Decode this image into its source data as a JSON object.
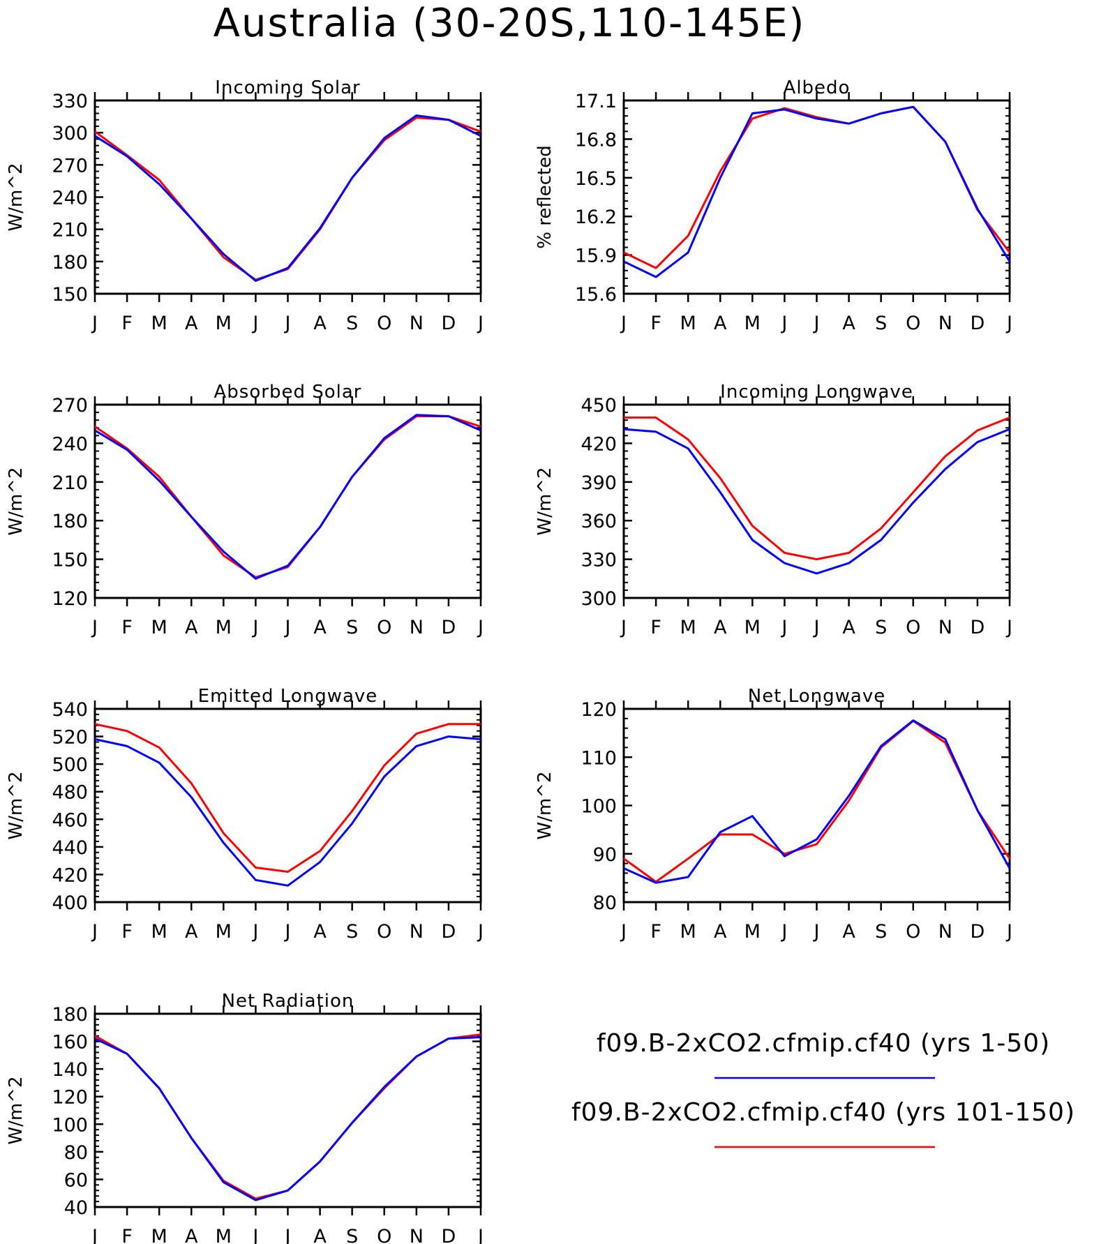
{
  "title": "Australia (30-20S,110-145E)",
  "colors": {
    "series_1": "#0000ff",
    "series_2": "#ff0000",
    "axis": "#000000"
  },
  "legend": {
    "items": [
      {
        "label": "f09.B-2xCO2.cfmip.cf40 (yrs 1-50)",
        "color": "#0000ff"
      },
      {
        "label": "f09.B-2xCO2.cfmip.cf40 (yrs 101-150)",
        "color": "#ff0000"
      }
    ]
  },
  "chart_data": [
    {
      "type": "line",
      "title": "Incoming Solar",
      "ylabel": "W/m^2",
      "xlabel": "",
      "categories": [
        "J",
        "F",
        "M",
        "A",
        "M",
        "J",
        "J",
        "A",
        "S",
        "O",
        "N",
        "D",
        "J"
      ],
      "ylim": [
        150,
        330
      ],
      "yticks": [
        150,
        180,
        210,
        240,
        270,
        300,
        330
      ],
      "series": [
        {
          "color": "#ff0000",
          "values": [
            301,
            279,
            256,
            220,
            184,
            163,
            173,
            210,
            258,
            293,
            314,
            312,
            301
          ]
        },
        {
          "color": "#0000ff",
          "values": [
            297,
            278,
            252,
            220,
            187,
            162,
            174,
            211,
            258,
            295,
            316,
            312,
            297
          ]
        }
      ]
    },
    {
      "type": "line",
      "title": "Albedo",
      "ylabel": "% reflected",
      "xlabel": "",
      "categories": [
        "J",
        "F",
        "M",
        "A",
        "M",
        "J",
        "J",
        "A",
        "S",
        "O",
        "N",
        "D",
        "J"
      ],
      "ylim": [
        15.6,
        17.1
      ],
      "yticks": [
        15.6,
        15.9,
        16.2,
        16.5,
        16.8,
        17.1
      ],
      "series": [
        {
          "color": "#ff0000",
          "values": [
            15.92,
            15.8,
            16.05,
            16.55,
            16.96,
            17.04,
            16.97,
            16.92,
            17.0,
            17.05,
            16.78,
            16.25,
            15.92
          ]
        },
        {
          "color": "#0000ff",
          "values": [
            15.85,
            15.73,
            15.92,
            16.5,
            17.0,
            17.03,
            16.96,
            16.92,
            17.0,
            17.05,
            16.78,
            16.26,
            15.85
          ]
        }
      ]
    },
    {
      "type": "line",
      "title": "Absorbed Solar",
      "ylabel": "W/m^2",
      "xlabel": "",
      "categories": [
        "J",
        "F",
        "M",
        "A",
        "M",
        "J",
        "J",
        "A",
        "S",
        "O",
        "N",
        "D",
        "J"
      ],
      "ylim": [
        120,
        270
      ],
      "yticks": [
        120,
        150,
        180,
        210,
        240,
        270
      ],
      "series": [
        {
          "color": "#ff0000",
          "values": [
            253,
            236,
            214,
            183,
            153,
            136,
            144,
            175,
            214,
            243,
            261,
            261,
            253
          ]
        },
        {
          "color": "#0000ff",
          "values": [
            250,
            235,
            211,
            183,
            156,
            135,
            145,
            175,
            214,
            244,
            262,
            261,
            250
          ]
        }
      ]
    },
    {
      "type": "line",
      "title": "Incoming Longwave",
      "ylabel": "W/m^2",
      "xlabel": "",
      "categories": [
        "J",
        "F",
        "M",
        "A",
        "M",
        "J",
        "J",
        "A",
        "S",
        "O",
        "N",
        "D",
        "J"
      ],
      "ylim": [
        300,
        450
      ],
      "yticks": [
        300,
        330,
        360,
        390,
        420,
        450
      ],
      "series": [
        {
          "color": "#ff0000",
          "values": [
            440,
            440,
            423,
            393,
            356,
            335,
            330,
            335,
            354,
            382,
            410,
            430,
            440
          ]
        },
        {
          "color": "#0000ff",
          "values": [
            431,
            429,
            416,
            382,
            345,
            327,
            319,
            327,
            345,
            374,
            400,
            421,
            431
          ]
        }
      ]
    },
    {
      "type": "line",
      "title": "Emitted Longwave",
      "ylabel": "W/m^2",
      "xlabel": "",
      "categories": [
        "J",
        "F",
        "M",
        "A",
        "M",
        "J",
        "J",
        "A",
        "S",
        "O",
        "N",
        "D",
        "J"
      ],
      "ylim": [
        400,
        540
      ],
      "yticks": [
        400,
        420,
        440,
        460,
        480,
        500,
        520,
        540
      ],
      "series": [
        {
          "color": "#ff0000",
          "values": [
            529,
            524,
            512,
            486,
            450,
            425,
            422,
            437,
            466,
            499,
            522,
            529,
            529
          ]
        },
        {
          "color": "#0000ff",
          "values": [
            518,
            513,
            501,
            476,
            443,
            416,
            412,
            429,
            457,
            491,
            513,
            520,
            518
          ]
        }
      ]
    },
    {
      "type": "line",
      "title": "Net Longwave",
      "ylabel": "W/m^2",
      "xlabel": "",
      "categories": [
        "J",
        "F",
        "M",
        "A",
        "M",
        "J",
        "J",
        "A",
        "S",
        "O",
        "N",
        "D",
        "J"
      ],
      "ylim": [
        80,
        120
      ],
      "yticks": [
        80,
        90,
        100,
        110,
        120
      ],
      "series": [
        {
          "color": "#ff0000",
          "values": [
            89,
            84.2,
            89,
            94,
            94,
            90,
            92,
            101,
            112,
            117.5,
            113,
            99,
            89
          ]
        },
        {
          "color": "#0000ff",
          "values": [
            87,
            84,
            85.2,
            94.5,
            97.8,
            89.5,
            93,
            102,
            112.3,
            117.6,
            113.7,
            99,
            87
          ]
        }
      ]
    },
    {
      "type": "line",
      "title": "Net Radiation",
      "ylabel": "W/m^2",
      "xlabel": "",
      "categories": [
        "J",
        "F",
        "M",
        "A",
        "M",
        "J",
        "J",
        "A",
        "S",
        "O",
        "N",
        "D",
        "J"
      ],
      "ylim": [
        40,
        180
      ],
      "yticks": [
        40,
        60,
        80,
        100,
        120,
        140,
        160,
        180
      ],
      "series": [
        {
          "color": "#ff0000",
          "values": [
            164,
            151,
            126,
            90,
            59,
            46,
            52,
            73,
            101,
            126,
            149,
            162,
            165
          ]
        },
        {
          "color": "#0000ff",
          "values": [
            162,
            151,
            126,
            90,
            58,
            45,
            52,
            73,
            101,
            127,
            149,
            162,
            163
          ]
        }
      ]
    }
  ]
}
